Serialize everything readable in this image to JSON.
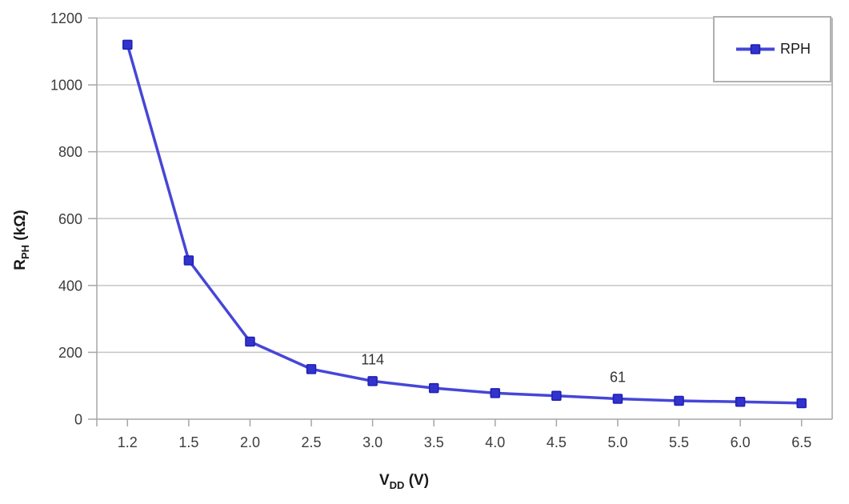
{
  "chart_data": {
    "type": "line",
    "title": "",
    "categories": [
      "1.2",
      "1.5",
      "2.0",
      "2.5",
      "3.0",
      "3.5",
      "4.0",
      "4.5",
      "5.0",
      "5.5",
      "6.0",
      "6.5"
    ],
    "series": [
      {
        "name": "RPH",
        "values": [
          1120,
          475,
          232,
          150,
          114,
          93,
          78,
          70,
          61,
          55,
          52,
          48
        ]
      }
    ],
    "point_labels": [
      {
        "category": "3.0",
        "text": "114"
      },
      {
        "category": "5.0",
        "text": "61"
      }
    ],
    "xlabel": {
      "base": "V",
      "sub": "DD",
      "suffix": " (V)"
    },
    "ylabel": {
      "base": "R",
      "sub": "PH",
      "suffix": " (kΩ)"
    },
    "ylim": [
      0,
      1200
    ],
    "ytick_step": 200,
    "yticks": [
      "0",
      "200",
      "400",
      "600",
      "800",
      "1000",
      "1200"
    ],
    "grid": true,
    "legend_position": "top-right",
    "colors": {
      "series_line": "#4646d8",
      "marker_fill": "#3232cc",
      "marker_stroke": "#1f1fb4",
      "gridline": "#c6c6c6",
      "axis": "#a6a6a6",
      "tick_text": "#3d3d3d",
      "data_label_text": "#333333",
      "legend_border": "#b0b0b0",
      "title_text": "#1a1a1a"
    }
  }
}
